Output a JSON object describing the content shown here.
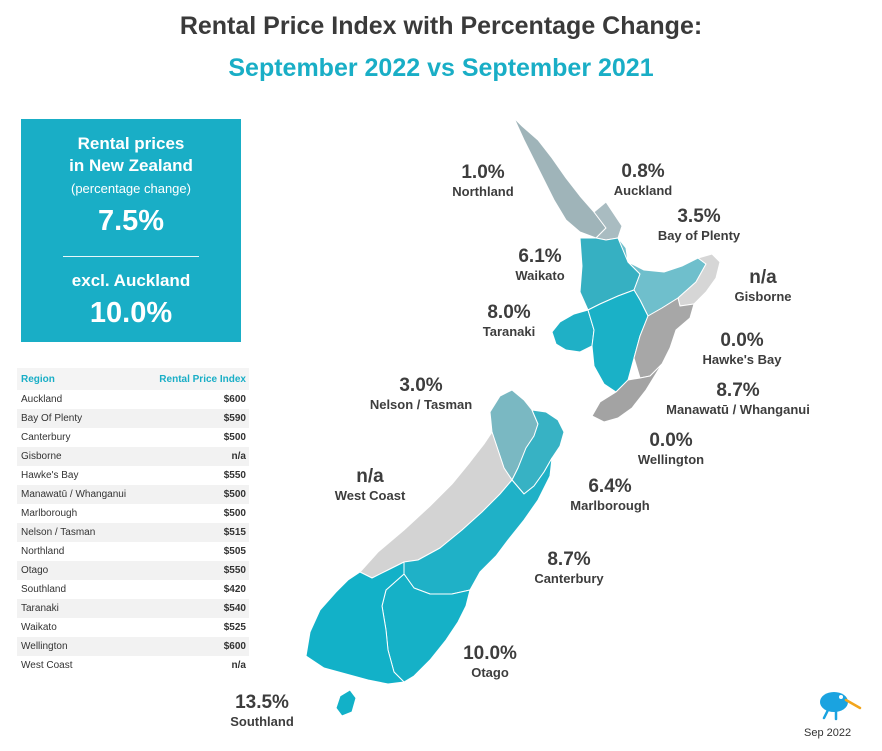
{
  "title": {
    "line1": "Rental Price Index with Percentage Change:",
    "line2": "September 2022 vs September 2021"
  },
  "summary": {
    "label": "Rental prices\nin New Zealand",
    "sublabel": "(percentage change)",
    "value": "7.5%",
    "excl_label": "excl. Auckland",
    "excl_value": "10.0%"
  },
  "table": {
    "headers": [
      "Region",
      "Rental Price Index"
    ],
    "rows": [
      [
        "Auckland",
        "$600"
      ],
      [
        "Bay Of Plenty",
        "$590"
      ],
      [
        "Canterbury",
        "$500"
      ],
      [
        "Gisborne",
        "n/a"
      ],
      [
        "Hawke's Bay",
        "$550"
      ],
      [
        "Manawatū / Whanganui",
        "$500"
      ],
      [
        "Marlborough",
        "$500"
      ],
      [
        "Nelson / Tasman",
        "$515"
      ],
      [
        "Northland",
        "$505"
      ],
      [
        "Otago",
        "$550"
      ],
      [
        "Southland",
        "$420"
      ],
      [
        "Taranaki",
        "$540"
      ],
      [
        "Waikato",
        "$525"
      ],
      [
        "Wellington",
        "$600"
      ],
      [
        "West Coast",
        "n/a"
      ]
    ]
  },
  "regions": {
    "northland": {
      "name": "Northland",
      "change": "1.0%",
      "color": "#9fb4b9"
    },
    "auckland": {
      "name": "Auckland",
      "change": "0.8%",
      "color": "#a9bcc1"
    },
    "bay_of_plenty": {
      "name": "Bay of Plenty",
      "change": "3.5%",
      "color": "#6fbfcc"
    },
    "gisborne": {
      "name": "Gisborne",
      "change": "n/a",
      "color": "#d6d6d6"
    },
    "waikato": {
      "name": "Waikato",
      "change": "6.1%",
      "color": "#36b0c2"
    },
    "taranaki": {
      "name": "Taranaki",
      "change": "8.0%",
      "color": "#1fb0c6"
    },
    "hawkes_bay": {
      "name": "Hawke's Bay",
      "change": "0.0%",
      "color": "#a7a7a7"
    },
    "manawatu": {
      "name": "Manawatū / Whanganui",
      "change": "8.7%",
      "color": "#1ab1c7"
    },
    "wellington": {
      "name": "Wellington",
      "change": "0.0%",
      "color": "#a3a3a3"
    },
    "nelson_tasman": {
      "name": "Nelson / Tasman",
      "change": "3.0%",
      "color": "#7ab8c2"
    },
    "west_coast": {
      "name": "West Coast",
      "change": "n/a",
      "color": "#d3d3d3"
    },
    "marlborough": {
      "name": "Marlborough",
      "change": "6.4%",
      "color": "#37b2c4"
    },
    "canterbury": {
      "name": "Canterbury",
      "change": "8.7%",
      "color": "#1fb1c7"
    },
    "otago": {
      "name": "Otago",
      "change": "10.0%",
      "color": "#15b1c7"
    },
    "southland": {
      "name": "Southland",
      "change": "13.5%",
      "color": "#12b1c8"
    }
  },
  "footer": {
    "date": "Sep 2022",
    "logo": "kiwi-logo"
  }
}
